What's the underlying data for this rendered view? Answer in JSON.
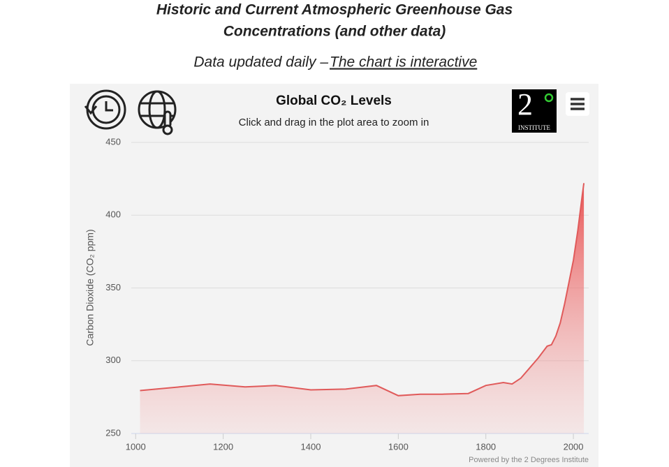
{
  "header": {
    "title_lines": [
      "Historic and Current Atmospheric Greenhouse Gas",
      "Concentrations (and other data)"
    ],
    "subtitle": "Data updated daily –",
    "link": "The chart is interactive"
  },
  "logo": {
    "mark": "2",
    "text": "INSTITUTE"
  },
  "chart_data": {
    "type": "area",
    "title": "Global CO₂ Levels",
    "subtitle": "Click and drag in the plot area to zoom in",
    "y_label": "Carbon Dioxide (CO₂ ppm)",
    "credits": "Powered by the 2 Degrees Institute",
    "x": [
      1010,
      1100,
      1170,
      1250,
      1320,
      1400,
      1480,
      1550,
      1600,
      1650,
      1700,
      1760,
      1800,
      1840,
      1860,
      1880,
      1900,
      1920,
      1940,
      1950,
      1960,
      1970,
      1980,
      1990,
      2000,
      2010,
      2020,
      2024
    ],
    "series": [
      {
        "name": "CO₂",
        "color": "#e05a5a",
        "values": [
          279.5,
          282,
          284,
          282,
          283,
          280,
          280.5,
          283,
          276,
          277,
          277,
          277.5,
          283,
          285,
          284,
          288,
          295,
          302,
          310,
          311,
          317,
          326,
          339,
          354,
          369,
          389,
          413,
          422
        ]
      }
    ],
    "xlim": [
      990,
      2035
    ],
    "ylim": [
      250,
      450
    ],
    "xticks": [
      1000,
      1200,
      1400,
      1600,
      1800,
      2000
    ],
    "yticks": [
      250,
      300,
      350,
      400,
      450
    ],
    "grid": true
  }
}
